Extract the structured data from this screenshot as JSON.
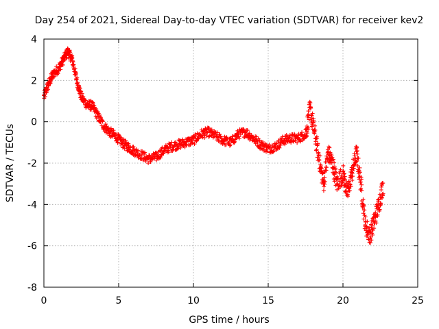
{
  "chart_data": {
    "type": "scatter",
    "title": "Day 254 of 2021, Sidereal Day-to-day VTEC variation (SDTVAR) for receiver kev2",
    "xlabel": "GPS time / hours",
    "ylabel": "SDTVAR / TECUs",
    "xlim": [
      0,
      25
    ],
    "ylim": [
      -8,
      4
    ],
    "xticks": [
      "0",
      "5",
      "10",
      "15",
      "20",
      "25"
    ],
    "yticks": [
      "-8",
      "-6",
      "-4",
      "-2",
      "0",
      "2",
      "4"
    ],
    "grid": true,
    "marker": "+",
    "color": "#ff0000",
    "series": [
      {
        "name": "kev2",
        "trend": [
          [
            0.0,
            1.2
          ],
          [
            0.3,
            1.8
          ],
          [
            0.6,
            2.3
          ],
          [
            1.0,
            2.6
          ],
          [
            1.3,
            3.0
          ],
          [
            1.6,
            3.4
          ],
          [
            1.9,
            3.0
          ],
          [
            2.2,
            2.0
          ],
          [
            2.5,
            1.2
          ],
          [
            2.9,
            0.8
          ],
          [
            3.2,
            0.8
          ],
          [
            3.6,
            0.3
          ],
          [
            4.0,
            -0.2
          ],
          [
            4.4,
            -0.5
          ],
          [
            4.8,
            -0.7
          ],
          [
            5.2,
            -1.0
          ],
          [
            5.6,
            -1.2
          ],
          [
            6.0,
            -1.4
          ],
          [
            6.5,
            -1.6
          ],
          [
            7.0,
            -1.8
          ],
          [
            7.5,
            -1.7
          ],
          [
            8.0,
            -1.4
          ],
          [
            8.5,
            -1.2
          ],
          [
            9.0,
            -1.1
          ],
          [
            9.5,
            -1.0
          ],
          [
            10.0,
            -0.9
          ],
          [
            10.5,
            -0.6
          ],
          [
            11.0,
            -0.5
          ],
          [
            11.5,
            -0.7
          ],
          [
            12.0,
            -0.9
          ],
          [
            12.5,
            -1.0
          ],
          [
            13.0,
            -0.6
          ],
          [
            13.5,
            -0.5
          ],
          [
            14.0,
            -0.8
          ],
          [
            14.5,
            -1.1
          ],
          [
            15.0,
            -1.3
          ],
          [
            15.5,
            -1.2
          ],
          [
            16.0,
            -0.9
          ],
          [
            16.5,
            -0.8
          ],
          [
            17.0,
            -0.8
          ],
          [
            17.5,
            -0.6
          ],
          [
            17.8,
            0.6
          ],
          [
            18.1,
            -0.5
          ],
          [
            18.4,
            -1.8
          ],
          [
            18.7,
            -3.0
          ],
          [
            19.0,
            -1.5
          ],
          [
            19.3,
            -2.0
          ],
          [
            19.6,
            -3.0
          ],
          [
            20.0,
            -2.5
          ],
          [
            20.3,
            -3.5
          ],
          [
            20.6,
            -2.5
          ],
          [
            20.9,
            -1.5
          ],
          [
            21.2,
            -3.0
          ],
          [
            21.5,
            -5.0
          ],
          [
            21.8,
            -5.5
          ],
          [
            22.1,
            -4.8
          ],
          [
            22.4,
            -4.0
          ],
          [
            22.7,
            -3.0
          ]
        ]
      }
    ]
  }
}
